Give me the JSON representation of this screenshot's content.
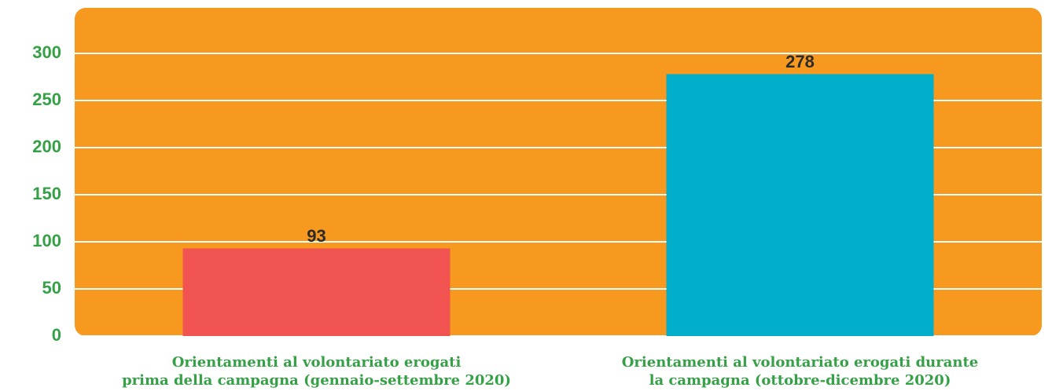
{
  "chart_data": {
    "type": "bar",
    "categories": [
      [
        "Orientamenti al volontariato erogati",
        "prima della campagna (gennaio-settembre 2020)"
      ],
      [
        "Orientamenti al volontariato erogati durante",
        "la campagna (ottobre-dicembre 2020)"
      ]
    ],
    "values": [
      93,
      278
    ],
    "colors": [
      "#f05350",
      "#00aecb"
    ],
    "background": "#f7991f",
    "ylim": [
      0,
      300
    ],
    "yticks": [
      0,
      50,
      100,
      150,
      200,
      250,
      300
    ],
    "grid": true
  }
}
